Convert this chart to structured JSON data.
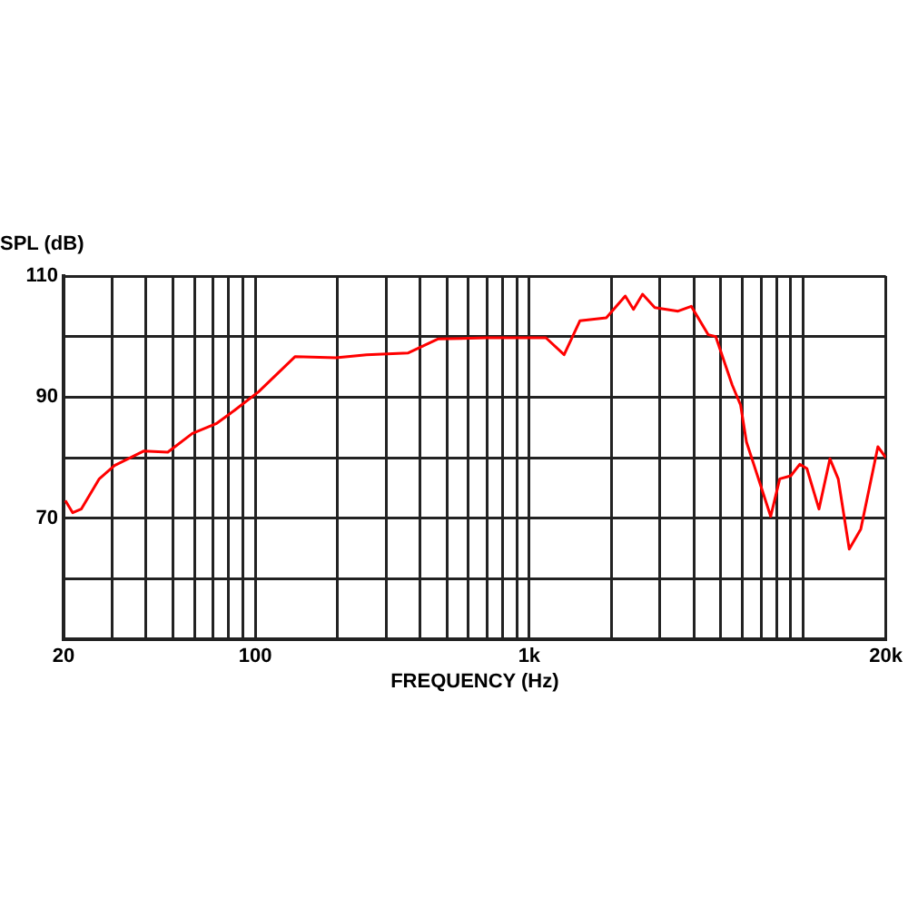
{
  "chart_data": {
    "type": "line",
    "xlabel": "FREQUENCY (Hz)",
    "ylabel": "SPL (dB)",
    "log": "x",
    "grid": true,
    "legend": false,
    "marker": "none",
    "line_style": "solid",
    "xlim": [
      20,
      20000
    ],
    "ylim": [
      50,
      110
    ],
    "xticks": [
      {
        "value": 20,
        "label": "20"
      },
      {
        "value": 30,
        "label": null
      },
      {
        "value": 40,
        "label": null
      },
      {
        "value": 50,
        "label": null
      },
      {
        "value": 60,
        "label": null
      },
      {
        "value": 70,
        "label": null
      },
      {
        "value": 80,
        "label": null
      },
      {
        "value": 90,
        "label": null
      },
      {
        "value": 100,
        "label": "100"
      },
      {
        "value": 200,
        "label": null
      },
      {
        "value": 300,
        "label": null
      },
      {
        "value": 400,
        "label": null
      },
      {
        "value": 500,
        "label": null
      },
      {
        "value": 600,
        "label": null
      },
      {
        "value": 700,
        "label": null
      },
      {
        "value": 800,
        "label": null
      },
      {
        "value": 900,
        "label": null
      },
      {
        "value": 1000,
        "label": "1k"
      },
      {
        "value": 2000,
        "label": null
      },
      {
        "value": 3000,
        "label": null
      },
      {
        "value": 4000,
        "label": null
      },
      {
        "value": 5000,
        "label": null
      },
      {
        "value": 6000,
        "label": null
      },
      {
        "value": 7000,
        "label": null
      },
      {
        "value": 8000,
        "label": null
      },
      {
        "value": 9000,
        "label": null
      },
      {
        "value": 10000,
        "label": null
      },
      {
        "value": 20000,
        "label": "20k"
      }
    ],
    "yticks": [
      {
        "value": 50,
        "label": null
      },
      {
        "value": 60,
        "label": null
      },
      {
        "value": 70,
        "label": "70"
      },
      {
        "value": 80,
        "label": null
      },
      {
        "value": 90,
        "label": "90"
      },
      {
        "value": 100,
        "label": null
      },
      {
        "value": 110,
        "label": "110"
      }
    ],
    "series": [
      {
        "color": "#ff0000",
        "x": [
          20.3,
          21.6,
          23.2,
          27,
          30.7,
          39.3,
          48,
          59,
          72,
          84,
          103,
          140,
          197,
          255,
          362,
          464,
          697,
          1150,
          1340,
          1530,
          1910,
          2240,
          2400,
          2590,
          2870,
          3490,
          3900,
          4500,
          4790,
          5500,
          5900,
          6200,
          7600,
          8200,
          9000,
          9700,
          10300,
          11400,
          12500,
          13400,
          14700,
          16200,
          18700,
          20000
        ],
        "values": [
          72.9,
          70.9,
          71.5,
          76.5,
          78.7,
          81.1,
          80.9,
          84,
          85.6,
          87.8,
          90.9,
          96.7,
          96.5,
          97,
          97.3,
          99.6,
          99.8,
          99.8,
          97,
          102.6,
          103.1,
          106.7,
          104.5,
          107,
          104.8,
          104.2,
          105,
          100.3,
          100,
          92,
          88.7,
          82.6,
          70.3,
          76.5,
          77,
          78.9,
          78.2,
          71.5,
          79.8,
          76.5,
          64.9,
          68.2,
          81.8,
          80
        ]
      }
    ]
  }
}
